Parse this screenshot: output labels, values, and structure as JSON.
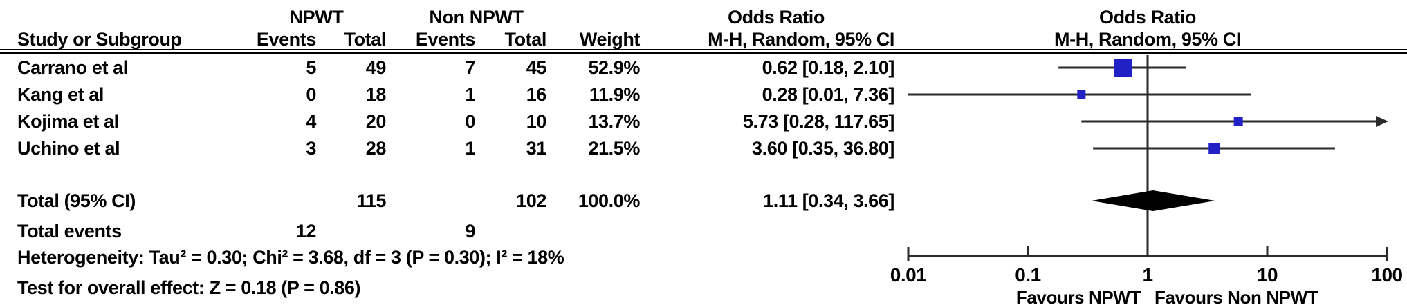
{
  "headers": {
    "group1": "NPWT",
    "group2": "Non NPWT",
    "or_left": "Odds Ratio",
    "or_right": "Odds Ratio",
    "method_left": "M-H, Random, 95% CI",
    "method_right": "M-H, Random, 95% CI",
    "study": "Study or Subgroup",
    "events": "Events",
    "total": "Total",
    "weight": "Weight"
  },
  "rows": [
    {
      "study": "Carrano et al",
      "events1": "5",
      "total1": "49",
      "events2": "7",
      "total2": "45",
      "weight": "52.9%",
      "or_text": "0.62 [0.18, 2.10]",
      "or": 0.62,
      "lo": 0.18,
      "hi": 2.1,
      "weight_pct": 52.9
    },
    {
      "study": "Kang et al",
      "events1": "0",
      "total1": "18",
      "events2": "1",
      "total2": "16",
      "weight": "11.9%",
      "or_text": "0.28 [0.01, 7.36]",
      "or": 0.28,
      "lo": 0.01,
      "hi": 7.36,
      "weight_pct": 11.9
    },
    {
      "study": "Kojima et al",
      "events1": "4",
      "total1": "20",
      "events2": "0",
      "total2": "10",
      "weight": "13.7%",
      "or_text": "5.73 [0.28, 117.65]",
      "or": 5.73,
      "lo": 0.28,
      "hi": 117.65,
      "weight_pct": 13.7
    },
    {
      "study": "Uchino et al",
      "events1": "3",
      "total1": "28",
      "events2": "1",
      "total2": "31",
      "weight": "21.5%",
      "or_text": "3.60 [0.35, 36.80]",
      "or": 3.6,
      "lo": 0.35,
      "hi": 36.8,
      "weight_pct": 21.5
    }
  ],
  "total_row": {
    "label": "Total (95% CI)",
    "total1": "115",
    "total2": "102",
    "weight": "100.0%",
    "or_text": "1.11 [0.34, 3.66]",
    "or": 1.11,
    "lo": 0.34,
    "hi": 3.66
  },
  "total_events": {
    "label": "Total events",
    "events1": "12",
    "events2": "9"
  },
  "stats": {
    "heterogeneity": "Heterogeneity: Tau² = 0.30; Chi² = 3.68, df = 3 (P = 0.30); I² = 18%",
    "overall": "Test for overall effect: Z = 0.18 (P = 0.86)"
  },
  "axis": {
    "ticks": [
      "0.01",
      "0.1",
      "1",
      "10",
      "100"
    ],
    "tick_values": [
      0.01,
      0.1,
      1,
      10,
      100
    ],
    "min": 0.01,
    "max": 100,
    "favours_left": "Favours NPWT",
    "favours_right": "Favours Non NPWT"
  },
  "colors": {
    "square_blue": "#2121c6",
    "diamond_black": "#000000",
    "line": "#2a2a2a",
    "text": "#000000"
  },
  "chart_data": {
    "type": "scatter",
    "subtype": "forest-plot",
    "title": "Odds Ratio, M-H, Random, 95% CI",
    "x_scale": "log",
    "x_ticks": [
      0.01,
      0.1,
      1,
      10,
      100
    ],
    "xlim": [
      0.01,
      100
    ],
    "studies": [
      "Carrano et al",
      "Kang et al",
      "Kojima et al",
      "Uchino et al"
    ],
    "npwt_events": [
      5,
      0,
      4,
      3
    ],
    "npwt_totals": [
      49,
      18,
      20,
      28
    ],
    "non_npwt_events": [
      7,
      1,
      0,
      1
    ],
    "non_npwt_totals": [
      45,
      16,
      10,
      31
    ],
    "weights_pct": [
      52.9,
      11.9,
      13.7,
      21.5
    ],
    "odds_ratios": [
      0.62,
      0.28,
      5.73,
      3.6
    ],
    "ci_low": [
      0.18,
      0.01,
      0.28,
      0.35
    ],
    "ci_high": [
      2.1,
      7.36,
      117.65,
      36.8
    ],
    "overall": {
      "or": 1.11,
      "ci_low": 0.34,
      "ci_high": 3.66,
      "total_npwt": 115,
      "total_non_npwt": 102,
      "total_events_npwt": 12,
      "total_events_non_npwt": 9
    },
    "heterogeneity": {
      "tau2": 0.3,
      "chi2": 3.68,
      "df": 3,
      "p": 0.3,
      "i2_pct": 18
    },
    "overall_effect": {
      "z": 0.18,
      "p": 0.86
    },
    "xlabel_left": "Favours NPWT",
    "xlabel_right": "Favours Non NPWT"
  }
}
